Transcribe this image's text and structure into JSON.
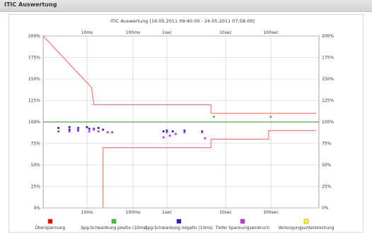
{
  "panel": {
    "title": "ITIC Auswertung"
  },
  "chart_data": {
    "type": "line",
    "title": "ITIC Auswertung [16.05.2011 09:40:00 - 24.05.2011 07:58:00]",
    "xscale": "log",
    "xticks": [
      "10ms",
      "100ms",
      "1sec",
      "10sec",
      "100sec"
    ],
    "yticks": [
      "0%",
      "25%",
      "50%",
      "75%",
      "100%",
      "125%",
      "150%",
      "175%",
      "200%"
    ],
    "ylim": [
      0,
      200
    ],
    "grid": true,
    "legend_position": "bottom",
    "colors": {
      "limit": "#ff5a5a",
      "nominal": "#2e8b2e",
      "positive": "#33cc33",
      "negative": "#2222cc",
      "dip": "#cc33cc",
      "interruption": "#ffff00",
      "overvoltage": "#ff0000"
    },
    "legend": [
      {
        "label": "Überspannung",
        "color": "#ff0000"
      },
      {
        "label": "Spg-Schwankung positiv (10ms)",
        "color": "#33cc33"
      },
      {
        "label": "Spg-Schwankung negativ (10ms)",
        "color": "#2222cc"
      },
      {
        "label": "Tiefer Spannungseinbruch",
        "color": "#cc33cc"
      },
      {
        "label": "Versorgungsunterbrechung",
        "color": "#ffff00"
      }
    ],
    "upper_limit": [
      [
        0.0,
        200
      ],
      [
        1.1,
        140
      ],
      [
        1.15,
        120
      ],
      [
        3.75,
        120
      ],
      [
        3.75,
        110
      ],
      [
        6.0,
        110
      ],
      [
        6.0,
        110
      ]
    ],
    "lower_limit": [
      [
        1.35,
        0
      ],
      [
        1.35,
        70
      ],
      [
        3.75,
        70
      ],
      [
        3.75,
        80
      ],
      [
        4.95,
        80
      ],
      [
        4.95,
        90
      ],
      [
        6.0,
        90
      ]
    ],
    "nominal": 100,
    "points": {
      "positive": [
        [
          3.8,
          106
        ],
        [
          5.0,
          106
        ]
      ],
      "negative": [
        [
          0.35,
          93
        ],
        [
          0.6,
          94
        ],
        [
          0.6,
          91
        ],
        [
          0.8,
          93
        ],
        [
          0.8,
          90
        ],
        [
          1.0,
          94
        ],
        [
          1.05,
          92
        ],
        [
          1.15,
          92
        ],
        [
          1.25,
          93
        ],
        [
          1.35,
          91
        ],
        [
          2.9,
          89
        ],
        [
          3.0,
          90
        ],
        [
          3.1,
          89
        ],
        [
          3.3,
          90
        ],
        [
          3.6,
          89
        ]
      ],
      "dip": [
        [
          0.35,
          89
        ],
        [
          0.6,
          89
        ],
        [
          0.8,
          91
        ],
        [
          1.05,
          89
        ],
        [
          1.15,
          91
        ],
        [
          1.25,
          89
        ],
        [
          1.45,
          88
        ],
        [
          1.55,
          88
        ],
        [
          2.9,
          82
        ],
        [
          3.0,
          88
        ],
        [
          3.05,
          84
        ],
        [
          3.15,
          86
        ],
        [
          3.3,
          88
        ],
        [
          3.6,
          88
        ],
        [
          3.65,
          81
        ]
      ]
    }
  }
}
